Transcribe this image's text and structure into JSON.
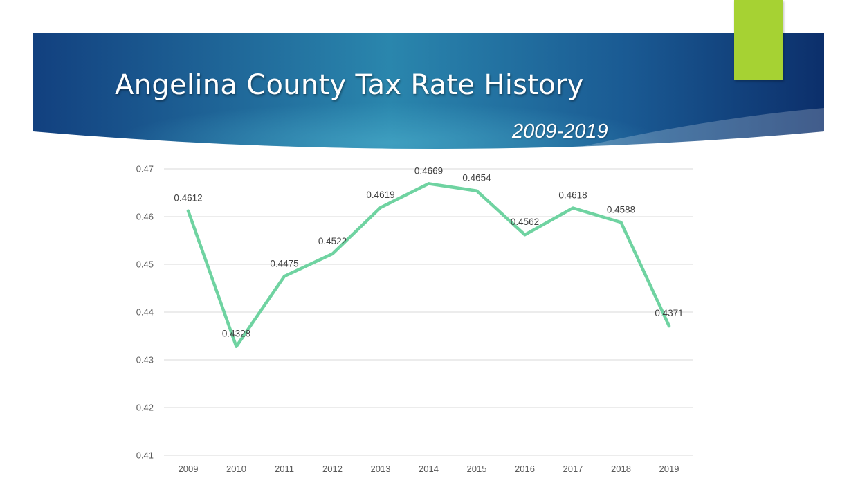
{
  "slide": {
    "title": "Angelina County Tax Rate History",
    "subtitle": "2009-2019"
  },
  "colors": {
    "band_dark": "#0d3a78",
    "band_light": "#2f8fb3",
    "accent": "#a6d233",
    "line": "#6fd3a1",
    "grid": "#d9d9d9"
  },
  "chart_data": {
    "type": "line",
    "title": "",
    "xlabel": "",
    "ylabel": "",
    "categories": [
      "2009",
      "2010",
      "2011",
      "2012",
      "2013",
      "2014",
      "2015",
      "2016",
      "2017",
      "2018",
      "2019"
    ],
    "series": [
      {
        "values": [
          0.4612,
          0.4328,
          0.4475,
          0.4522,
          0.4619,
          0.4669,
          0.4654,
          0.4562,
          0.4618,
          0.4588,
          0.4371
        ],
        "labels": [
          "0.4612",
          "0.4328",
          "0.4475",
          "0.4522",
          "0.4619",
          "0.4669",
          "0.4654",
          "0.4562",
          "0.4618",
          "0.4588",
          "0.4371"
        ]
      }
    ],
    "yticks": [
      "0.47",
      "0.46",
      "0.45",
      "0.44",
      "0.43",
      "0.42",
      "0.41"
    ],
    "ylim": [
      0.41,
      0.47
    ],
    "grid": true,
    "legend": "none"
  }
}
